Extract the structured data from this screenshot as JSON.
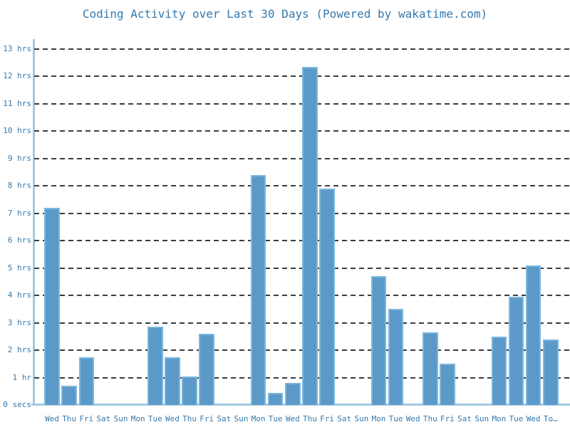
{
  "chart_data": {
    "type": "bar",
    "title": "Coding Activity over Last 30 Days (Powered by wakatime.com)",
    "unit": "hrs",
    "xlabel": "",
    "ylabel": "",
    "categories": [
      "Wed",
      "Thu",
      "Fri",
      "Sat",
      "Sun",
      "Mon",
      "Tue",
      "Wed",
      "Thu",
      "Fri",
      "Sat",
      "Sun",
      "Mon",
      "Tue",
      "Wed",
      "Thu",
      "Fri",
      "Sat",
      "Sun",
      "Mon",
      "Tue",
      "Wed",
      "Thu",
      "Fri",
      "Sat",
      "Sun",
      "Mon",
      "Tue",
      "Wed",
      "To…"
    ],
    "values": [
      7.2,
      0.7,
      1.75,
      0,
      0,
      0,
      2.85,
      1.75,
      1.05,
      2.6,
      0,
      0,
      8.4,
      0.45,
      0.8,
      12.35,
      7.9,
      0,
      0,
      4.7,
      3.5,
      0,
      2.65,
      1.5,
      0,
      0,
      2.5,
      3.95,
      5.1,
      2.4
    ],
    "ylim": [
      0,
      13.35
    ],
    "yticks": [
      {
        "value": 0,
        "label": "0 secs"
      },
      {
        "value": 1,
        "label": "1 hr"
      },
      {
        "value": 2,
        "label": "2 hrs"
      },
      {
        "value": 3,
        "label": "3 hrs"
      },
      {
        "value": 4,
        "label": "4 hrs"
      },
      {
        "value": 5,
        "label": "5 hrs"
      },
      {
        "value": 6,
        "label": "6 hrs"
      },
      {
        "value": 7,
        "label": "7 hrs"
      },
      {
        "value": 8,
        "label": "8 hrs"
      },
      {
        "value": 9,
        "label": "9 hrs"
      },
      {
        "value": 10,
        "label": "10 hrs"
      },
      {
        "value": 11,
        "label": "11 hrs"
      },
      {
        "value": 12,
        "label": "12 hrs"
      },
      {
        "value": 13,
        "label": "13 hrs"
      }
    ],
    "grid": "horizontal-dashed",
    "legend_position": "none",
    "colors": {
      "bar_fill": "#5b9ac8",
      "bar_border": "#7db7dd",
      "axis": "#a3c8e0",
      "gridline": "#3c3c3c",
      "text": "#3579ad",
      "background": "#ffffff"
    }
  }
}
